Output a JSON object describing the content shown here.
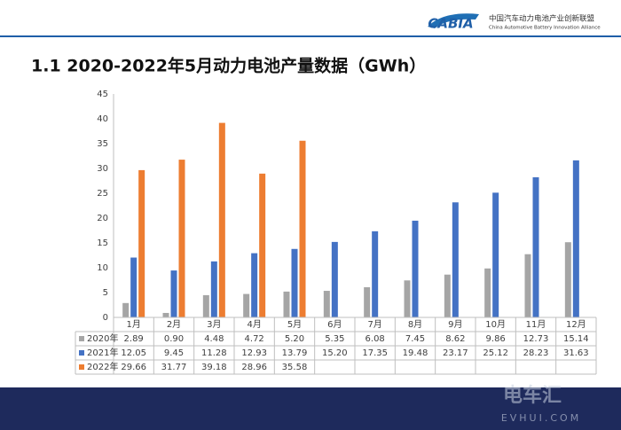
{
  "header": {
    "logo": "CABIA",
    "org_cn": "中国汽车动力电池产业创新联盟",
    "org_en": "China Automotive Battery Innovation Alliance"
  },
  "watermark": {
    "cn": "电车汇",
    "en": "EVHUI.COM"
  },
  "chart_data": {
    "type": "bar",
    "title": "1.1 2020-2022年5月动力电池产量数据（GWh）",
    "categories": [
      "1月",
      "2月",
      "3月",
      "4月",
      "5月",
      "6月",
      "7月",
      "8月",
      "9月",
      "10月",
      "11月",
      "12月"
    ],
    "series": [
      {
        "name": "2020年",
        "color": "#a5a5a5",
        "values": [
          2.89,
          0.9,
          4.48,
          4.72,
          5.2,
          5.35,
          6.08,
          7.45,
          8.62,
          9.86,
          12.73,
          15.14
        ],
        "value_labels": [
          "2.89",
          "0.90",
          "4.48",
          "4.72",
          "5.20",
          "5.35",
          "6.08",
          "7.45",
          "8.62",
          "9.86",
          "12.73",
          "15.14"
        ]
      },
      {
        "name": "2021年",
        "color": "#4472c4",
        "values": [
          12.05,
          9.45,
          11.28,
          12.93,
          13.79,
          15.2,
          17.35,
          19.48,
          23.17,
          25.12,
          28.23,
          31.63
        ],
        "value_labels": [
          "12.05",
          "9.45",
          "11.28",
          "12.93",
          "13.79",
          "15.20",
          "17.35",
          "19.48",
          "23.17",
          "25.12",
          "28.23",
          "31.63"
        ]
      },
      {
        "name": "2022年",
        "color": "#ed7d31",
        "values": [
          29.66,
          31.77,
          39.18,
          28.96,
          35.58,
          null,
          null,
          null,
          null,
          null,
          null,
          null
        ],
        "value_labels": [
          "29.66",
          "31.77",
          "39.18",
          "28.96",
          "35.58",
          null,
          null,
          null,
          null,
          null,
          null,
          null
        ]
      }
    ],
    "ylim": [
      0,
      45
    ],
    "yticks": [
      0,
      5,
      10,
      15,
      20,
      25,
      30,
      35,
      40,
      45
    ],
    "grid": false
  }
}
